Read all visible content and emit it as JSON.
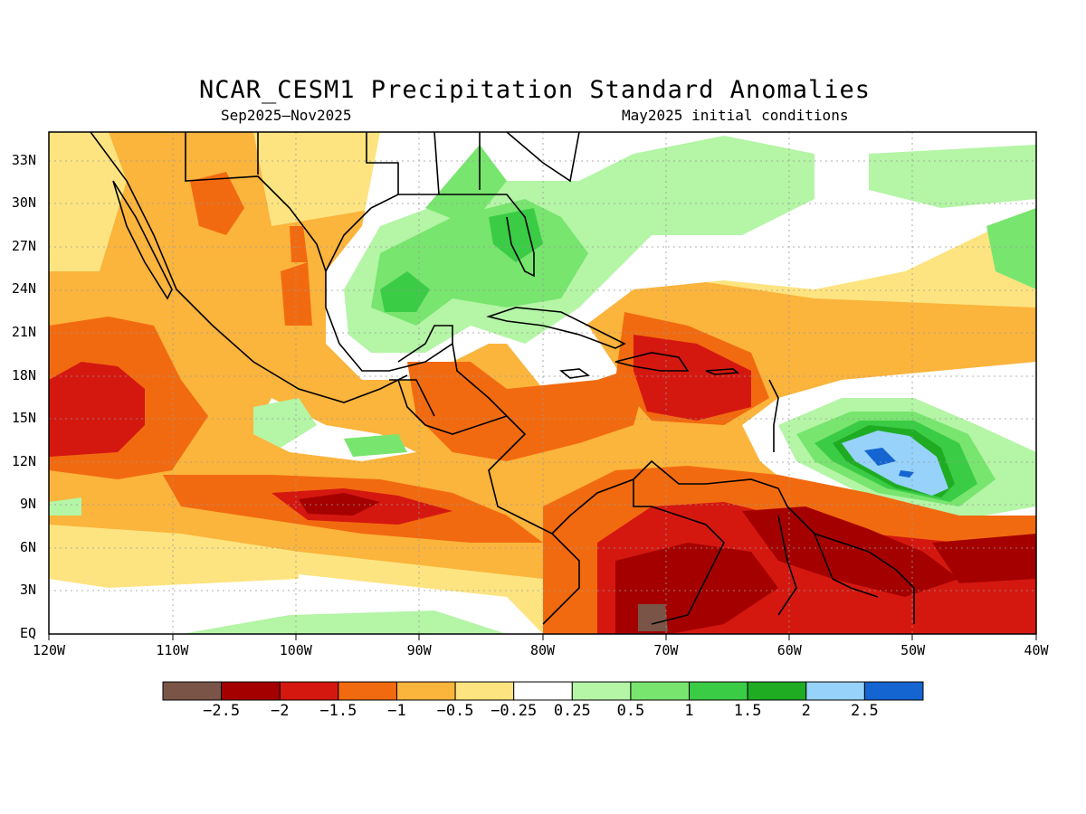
{
  "title": "NCAR_CESM1 Precipitation Standard Anomalies",
  "subtitle_left": "Sep2025–Nov2025",
  "subtitle_right": "May2025 initial conditions",
  "lat_labels": [
    "33N",
    "30N",
    "27N",
    "24N",
    "21N",
    "18N",
    "15N",
    "12N",
    "9N",
    "6N",
    "3N",
    "EQ"
  ],
  "lon_labels": [
    "120W",
    "110W",
    "100W",
    "90W",
    "80W",
    "70W",
    "60W",
    "50W",
    "40W"
  ],
  "colorbar": {
    "colors": [
      "#7a5547",
      "#a50000",
      "#d41810",
      "#f26a10",
      "#fbb43c",
      "#fde480",
      "#ffffff",
      "#b4f5a6",
      "#78e56e",
      "#3bcc46",
      "#1fac23",
      "#96d2fa",
      "#1464d2"
    ],
    "labels": [
      "−2.5",
      "−2",
      "−1.5",
      "−1",
      "−0.5",
      "−0.25",
      "0.25",
      "0.5",
      "1",
      "1.5",
      "2",
      "2.5"
    ]
  }
}
